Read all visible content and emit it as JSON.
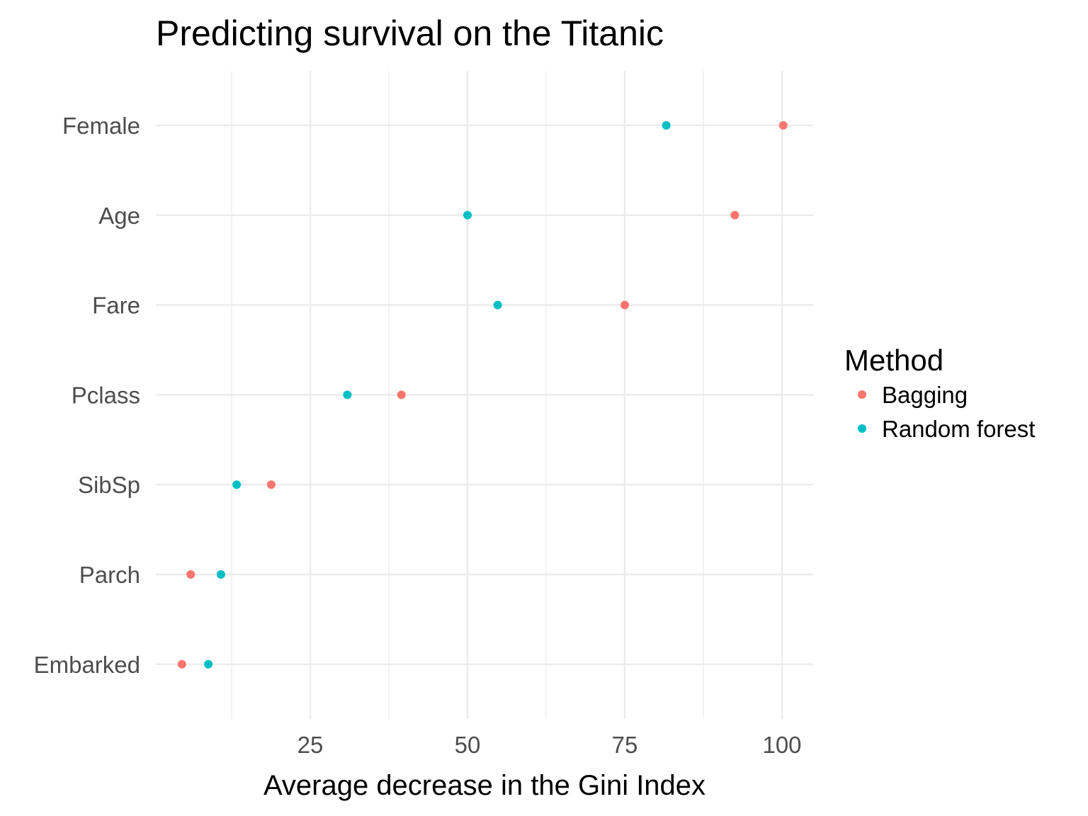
{
  "chart_data": {
    "type": "scatter",
    "title": "Predicting survival on the Titanic",
    "xlabel": "Average decrease in the Gini Index",
    "ylabel": "",
    "categories": [
      "Female",
      "Age",
      "Fare",
      "Pclass",
      "SibSp",
      "Parch",
      "Embarked"
    ],
    "xlim": [
      1,
      105
    ],
    "x_ticks": [
      25,
      50,
      75,
      100
    ],
    "x_tick_labels": [
      "25",
      "50",
      "75",
      "100"
    ],
    "x_minor_ticks": [
      12.5,
      37.5,
      62.5,
      87.5
    ],
    "grid": true,
    "legend": {
      "title": "Method",
      "position": "right"
    },
    "series": [
      {
        "name": "Bagging",
        "color": "#F8766D",
        "values": [
          100.2,
          92.5,
          75.0,
          39.5,
          18.8,
          6.0,
          4.6
        ]
      },
      {
        "name": "Random forest",
        "color": "#00BFC4",
        "values": [
          81.6,
          50.0,
          54.8,
          30.9,
          13.3,
          10.8,
          8.8
        ]
      }
    ]
  }
}
